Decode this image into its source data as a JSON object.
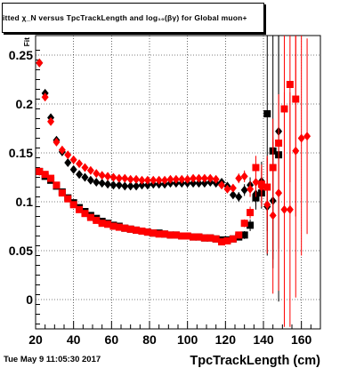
{
  "chart_data": {
    "type": "scatter",
    "title": "itted χ_N versus TpcTrackLength and log10(βγ) for Global muon+",
    "title_display": "itted  χ_N  versus  TpcTrackLength and log₁₀(βγ) for Global muon+",
    "xlabel": "TpcTrackLength (cm)",
    "ylabel": "Fit",
    "xlim": [
      20,
      170
    ],
    "ylim": [
      -0.03,
      0.27
    ],
    "xticks": [
      20,
      40,
      60,
      80,
      100,
      120,
      140,
      160
    ],
    "yticks": [
      0,
      0.05,
      0.1,
      0.15,
      0.2,
      0.25
    ],
    "ytick_labels": [
      "0",
      "0.05",
      "0.1",
      "0.15",
      "0.2",
      "0.25"
    ],
    "grid": true,
    "legend": "none",
    "series": [
      {
        "marker": "square",
        "color": "#000000",
        "points": [
          [
            22,
            0.131,
            0.004
          ],
          [
            25,
            0.126,
            0.002
          ],
          [
            28,
            0.122,
            0.002
          ],
          [
            31,
            0.116,
            0.002
          ],
          [
            34,
            0.11,
            0.002
          ],
          [
            37,
            0.104,
            0.002
          ],
          [
            40,
            0.099,
            0.002
          ],
          [
            43,
            0.094,
            0.002
          ],
          [
            46,
            0.09,
            0.001
          ],
          [
            49,
            0.086,
            0.001
          ],
          [
            52,
            0.083,
            0.001
          ],
          [
            55,
            0.08,
            0.001
          ],
          [
            58,
            0.078,
            0.001
          ],
          [
            61,
            0.076,
            0.001
          ],
          [
            64,
            0.075,
            0.001
          ],
          [
            67,
            0.073,
            0.001
          ],
          [
            70,
            0.072,
            0.001
          ],
          [
            73,
            0.071,
            0.001
          ],
          [
            76,
            0.07,
            0.001
          ],
          [
            79,
            0.069,
            0.001
          ],
          [
            82,
            0.068,
            0.001
          ],
          [
            85,
            0.068,
            0.001
          ],
          [
            88,
            0.067,
            0.001
          ],
          [
            91,
            0.066,
            0.001
          ],
          [
            94,
            0.066,
            0.001
          ],
          [
            97,
            0.065,
            0.001
          ],
          [
            100,
            0.065,
            0.001
          ],
          [
            103,
            0.064,
            0.001
          ],
          [
            106,
            0.064,
            0.001
          ],
          [
            109,
            0.063,
            0.001
          ],
          [
            112,
            0.063,
            0.001
          ],
          [
            115,
            0.062,
            0.001
          ],
          [
            118,
            0.061,
            0.001
          ],
          [
            121,
            0.061,
            0.002
          ],
          [
            124,
            0.062,
            0.002
          ],
          [
            127,
            0.064,
            0.003
          ],
          [
            130,
            0.066,
            0.004
          ],
          [
            133,
            0.076,
            0.006
          ],
          [
            136,
            0.104,
            0.012
          ],
          [
            139,
            0.109,
            0.016
          ],
          [
            142,
            0.19,
            0.12
          ],
          [
            145,
            0.152,
            0.12
          ],
          [
            148,
            0.148,
            0.15
          ]
        ]
      },
      {
        "marker": "diamond",
        "color": "#000000",
        "points": [
          [
            22,
            0.242,
            0.003
          ],
          [
            25,
            0.211,
            0.002
          ],
          [
            28,
            0.186,
            0.002
          ],
          [
            31,
            0.163,
            0.002
          ],
          [
            34,
            0.151,
            0.002
          ],
          [
            37,
            0.14,
            0.002
          ],
          [
            40,
            0.133,
            0.001
          ],
          [
            43,
            0.128,
            0.001
          ],
          [
            46,
            0.125,
            0.001
          ],
          [
            49,
            0.122,
            0.001
          ],
          [
            52,
            0.12,
            0.001
          ],
          [
            55,
            0.119,
            0.001
          ],
          [
            58,
            0.118,
            0.001
          ],
          [
            61,
            0.117,
            0.001
          ],
          [
            64,
            0.117,
            0.001
          ],
          [
            67,
            0.116,
            0.001
          ],
          [
            70,
            0.116,
            0.001
          ],
          [
            73,
            0.116,
            0.001
          ],
          [
            76,
            0.117,
            0.001
          ],
          [
            79,
            0.117,
            0.001
          ],
          [
            82,
            0.118,
            0.001
          ],
          [
            85,
            0.118,
            0.001
          ],
          [
            88,
            0.118,
            0.001
          ],
          [
            91,
            0.119,
            0.001
          ],
          [
            94,
            0.119,
            0.001
          ],
          [
            97,
            0.119,
            0.001
          ],
          [
            100,
            0.119,
            0.001
          ],
          [
            103,
            0.119,
            0.001
          ],
          [
            106,
            0.119,
            0.001
          ],
          [
            109,
            0.119,
            0.001
          ],
          [
            112,
            0.12,
            0.001
          ],
          [
            115,
            0.119,
            0.002
          ],
          [
            118,
            0.12,
            0.002
          ],
          [
            121,
            0.116,
            0.003
          ],
          [
            124,
            0.107,
            0.004
          ],
          [
            127,
            0.105,
            0.005
          ],
          [
            130,
            0.112,
            0.006
          ],
          [
            133,
            0.117,
            0.008
          ],
          [
            136,
            0.108,
            0.012
          ],
          [
            139,
            0.121,
            0.02
          ],
          [
            142,
            0.095,
            0.05
          ],
          [
            145,
            0.101,
            0.06
          ],
          [
            148,
            0.172,
            0.12
          ]
        ]
      },
      {
        "marker": "square",
        "color": "#ff0000",
        "points": [
          [
            22,
            0.131,
            0.004
          ],
          [
            25,
            0.128,
            0.002
          ],
          [
            28,
            0.124,
            0.002
          ],
          [
            31,
            0.117,
            0.002
          ],
          [
            34,
            0.109,
            0.002
          ],
          [
            37,
            0.103,
            0.002
          ],
          [
            40,
            0.097,
            0.002
          ],
          [
            43,
            0.092,
            0.002
          ],
          [
            46,
            0.088,
            0.001
          ],
          [
            49,
            0.084,
            0.001
          ],
          [
            52,
            0.081,
            0.001
          ],
          [
            55,
            0.078,
            0.001
          ],
          [
            58,
            0.077,
            0.001
          ],
          [
            61,
            0.075,
            0.001
          ],
          [
            64,
            0.074,
            0.001
          ],
          [
            67,
            0.073,
            0.001
          ],
          [
            70,
            0.072,
            0.001
          ],
          [
            73,
            0.071,
            0.001
          ],
          [
            76,
            0.07,
            0.001
          ],
          [
            79,
            0.069,
            0.001
          ],
          [
            82,
            0.068,
            0.001
          ],
          [
            85,
            0.067,
            0.001
          ],
          [
            88,
            0.067,
            0.001
          ],
          [
            91,
            0.066,
            0.001
          ],
          [
            94,
            0.066,
            0.001
          ],
          [
            97,
            0.065,
            0.001
          ],
          [
            100,
            0.065,
            0.001
          ],
          [
            103,
            0.064,
            0.001
          ],
          [
            106,
            0.064,
            0.001
          ],
          [
            109,
            0.063,
            0.001
          ],
          [
            112,
            0.063,
            0.001
          ],
          [
            115,
            0.062,
            0.001
          ],
          [
            118,
            0.059,
            0.002
          ],
          [
            121,
            0.06,
            0.002
          ],
          [
            124,
            0.062,
            0.002
          ],
          [
            127,
            0.066,
            0.003
          ],
          [
            130,
            0.078,
            0.004
          ],
          [
            133,
            0.089,
            0.006
          ],
          [
            136,
            0.135,
            0.012
          ],
          [
            139,
            0.118,
            0.02
          ],
          [
            142,
            0.115,
            0.03
          ],
          [
            145,
            0.135,
            0.05
          ],
          [
            148,
            0.16,
            0.05
          ],
          [
            151,
            0.195,
            0.1
          ],
          [
            154,
            0.22,
            0.1
          ],
          [
            157,
            0.205,
            0.12
          ]
        ]
      },
      {
        "marker": "diamond",
        "color": "#ff0000",
        "points": [
          [
            22,
            0.242,
            0.003
          ],
          [
            25,
            0.207,
            0.002
          ],
          [
            28,
            0.182,
            0.002
          ],
          [
            31,
            0.161,
            0.002
          ],
          [
            34,
            0.153,
            0.002
          ],
          [
            37,
            0.148,
            0.002
          ],
          [
            40,
            0.143,
            0.001
          ],
          [
            43,
            0.139,
            0.001
          ],
          [
            46,
            0.135,
            0.001
          ],
          [
            49,
            0.132,
            0.001
          ],
          [
            52,
            0.129,
            0.001
          ],
          [
            55,
            0.127,
            0.001
          ],
          [
            58,
            0.126,
            0.001
          ],
          [
            61,
            0.125,
            0.001
          ],
          [
            64,
            0.124,
            0.001
          ],
          [
            67,
            0.124,
            0.001
          ],
          [
            70,
            0.123,
            0.001
          ],
          [
            73,
            0.123,
            0.001
          ],
          [
            76,
            0.122,
            0.001
          ],
          [
            79,
            0.122,
            0.001
          ],
          [
            82,
            0.122,
            0.001
          ],
          [
            85,
            0.122,
            0.001
          ],
          [
            88,
            0.122,
            0.001
          ],
          [
            91,
            0.123,
            0.001
          ],
          [
            94,
            0.123,
            0.001
          ],
          [
            97,
            0.123,
            0.001
          ],
          [
            100,
            0.123,
            0.001
          ],
          [
            103,
            0.124,
            0.001
          ],
          [
            106,
            0.124,
            0.001
          ],
          [
            109,
            0.124,
            0.001
          ],
          [
            112,
            0.124,
            0.001
          ],
          [
            115,
            0.123,
            0.002
          ],
          [
            118,
            0.117,
            0.002
          ],
          [
            121,
            0.113,
            0.003
          ],
          [
            124,
            0.114,
            0.004
          ],
          [
            127,
            0.124,
            0.005
          ],
          [
            130,
            0.126,
            0.006
          ],
          [
            133,
            0.113,
            0.008
          ],
          [
            136,
            0.12,
            0.015
          ],
          [
            139,
            0.115,
            0.02
          ],
          [
            142,
            0.097,
            0.05
          ],
          [
            145,
            0.086,
            0.08
          ],
          [
            148,
            0.109,
            0.1
          ],
          [
            151,
            0.092,
            0.12
          ],
          [
            154,
            0.092,
            0.12
          ],
          [
            157,
            0.152,
            0.15
          ],
          [
            160,
            0.165,
            0.12
          ],
          [
            163,
            0.167,
            0.1
          ]
        ]
      }
    ],
    "timestamp": "Tue May  9 11:05:30 2017"
  }
}
